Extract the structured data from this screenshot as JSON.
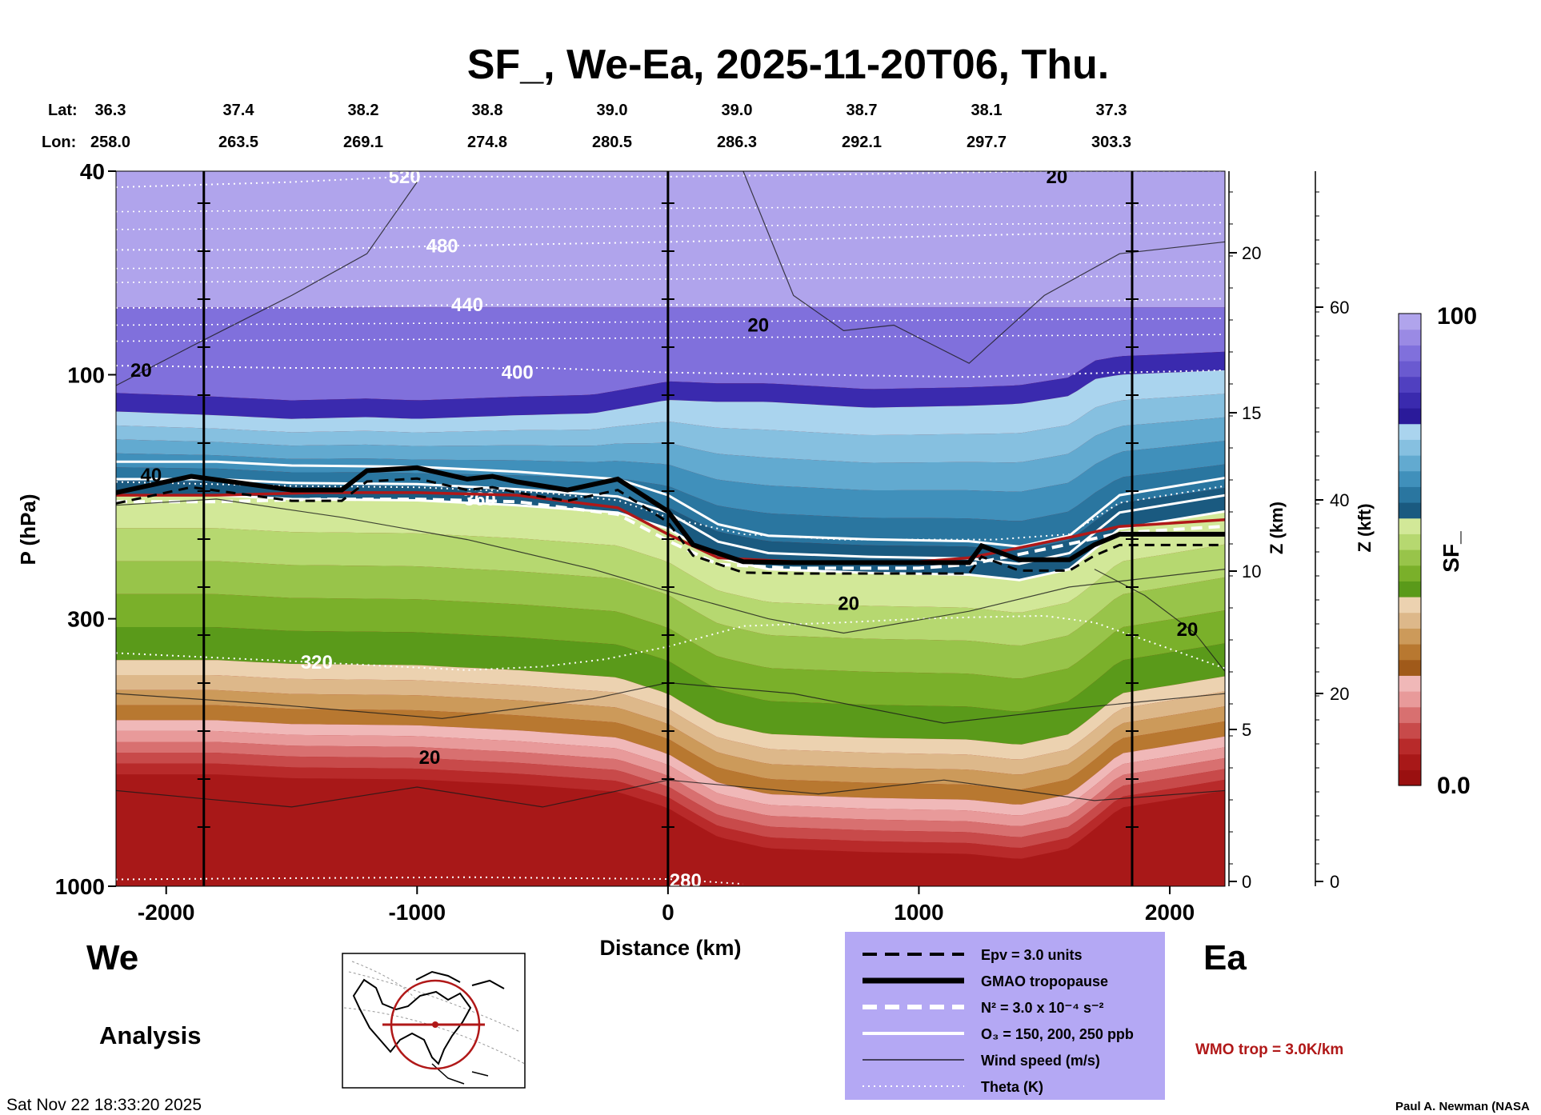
{
  "title": "SF_, We-Ea, 2025-11-20T06, Thu.",
  "lat_label": "Lat:",
  "lon_label": "Lon:",
  "lat_values": [
    "36.3",
    "37.4",
    "38.2",
    "38.8",
    "39.0",
    "39.0",
    "38.7",
    "38.1",
    "37.3"
  ],
  "lon_values": [
    "258.0",
    "263.5",
    "269.1",
    "274.8",
    "280.5",
    "286.3",
    "292.1",
    "297.7",
    "303.3"
  ],
  "axes": {
    "ylabel": "P (hPa)",
    "xlabel": "Distance (km)",
    "z_km_label": "Z (km)",
    "z_kft_label": "Z (kft)",
    "p_ticks": [
      "40",
      "100",
      "300",
      "1000"
    ],
    "x_ticks": [
      "-2000",
      "-1000",
      "0",
      "1000",
      "2000"
    ],
    "z_km_ticks": [
      "20",
      "15",
      "10",
      "5",
      "0"
    ],
    "z_kft_ticks": [
      "60",
      "40",
      "20",
      "0"
    ]
  },
  "colorbar": {
    "label": "SF_",
    "max_label": "100",
    "min_label": "0.0",
    "colors": [
      "#9a1010",
      "#a81818",
      "#b82a2a",
      "#c84a4a",
      "#d87070",
      "#e89a9a",
      "#f0b8b8",
      "#a05a1a",
      "#b87830",
      "#cc9a5a",
      "#ddb88a",
      "#ecd2b0",
      "#5a9a1a",
      "#7ab02a",
      "#98c44a",
      "#b6d870",
      "#d2e898",
      "#1a5a80",
      "#2a76a0",
      "#4090bb",
      "#62aad0",
      "#86c0e0",
      "#aad4ee",
      "#2a1a9a",
      "#3a2aae",
      "#5040c0",
      "#6a5ad0",
      "#8070dc",
      "#9a8ae4",
      "#b0a4ec"
    ]
  },
  "side_labels": {
    "left": "We",
    "right": "Ea",
    "analysis": "Analysis"
  },
  "legend": {
    "items": [
      {
        "style": "dashed-black",
        "label": "Epv = 3.0 units"
      },
      {
        "style": "thick-black",
        "label": "GMAO tropopause"
      },
      {
        "style": "dashed-white",
        "label": "N² = 3.0 x 10⁻⁴ s⁻²"
      },
      {
        "style": "white",
        "label": "O₃ = 150, 200, 250 ppb"
      },
      {
        "style": "thin-black",
        "label": "Wind speed (m/s)"
      },
      {
        "style": "dotted-white",
        "label": "Theta (K)"
      }
    ],
    "background": "#b4a8f4"
  },
  "wmo_label": "WMO trop = 3.0K/km",
  "wmo_color": "#b01818",
  "timestamp": "Sat Nov 22 18:33:20 2025",
  "credit": "Paul A. Newman (NASA",
  "chart_data": {
    "type": "heatmap",
    "title": "SF_, We-Ea, 2025-11-20T06, Thu.",
    "xlabel": "Distance (km)",
    "ylabel": "P (hPa)",
    "xlim": [
      -2200,
      2220
    ],
    "ylim": [
      1000,
      40
    ],
    "y_scale": "log",
    "color_range": [
      0.0,
      100
    ],
    "grid": false,
    "vertical_lines_km": [
      -1850,
      0,
      1850
    ],
    "stratosphere_lower_boundary_hPa": {
      "x": [
        -2200,
        -1800,
        -1500,
        -1200,
        -1000,
        -800,
        -600,
        -300,
        0,
        200,
        400,
        800,
        1200,
        1400,
        1600,
        1700,
        1800,
        2220
      ],
      "p": [
        118,
        120,
        122,
        121,
        122,
        121,
        120,
        119,
        112,
        113,
        113,
        116,
        115,
        114,
        110,
        102,
        100,
        98
      ]
    },
    "ozone_layer_lower_boundary_hPa": {
      "x": [
        -2200,
        -1800,
        -1500,
        -1000,
        -600,
        -200,
        0,
        200,
        400,
        800,
        1200,
        1400,
        1600,
        1800,
        2220
      ],
      "p": [
        172,
        172,
        175,
        176,
        180,
        186,
        200,
        228,
        240,
        244,
        246,
        252,
        240,
        200,
        185
      ]
    },
    "gmao_tropopause_hPa": {
      "x": [
        -2200,
        -1900,
        -1500,
        -1300,
        -1200,
        -1000,
        -800,
        -700,
        -600,
        -400,
        -200,
        0,
        100,
        300,
        500,
        800,
        1000,
        1200,
        1250,
        1400,
        1600,
        1700,
        1800,
        2220
      ],
      "p": [
        170,
        158,
        168,
        168,
        154,
        152,
        160,
        158,
        162,
        168,
        160,
        185,
        215,
        232,
        233,
        233,
        233,
        233,
        216,
        230,
        230,
        215,
        205,
        205
      ]
    },
    "wmo_tropopause_hPa": {
      "x": [
        -2200,
        -1800,
        -1400,
        -1000,
        -600,
        -200,
        0,
        200,
        500,
        800,
        1000,
        1200,
        1400,
        1600,
        1800,
        2220
      ],
      "p": [
        172,
        172,
        170,
        170,
        172,
        182,
        205,
        228,
        232,
        232,
        232,
        228,
        218,
        208,
        198,
        192
      ]
    },
    "theta_isentropes_K": [
      {
        "level": 320,
        "label_x": -1400,
        "label_p": 365,
        "pts": [
          [
            -2200,
            350
          ],
          [
            -1400,
            365
          ],
          [
            -800,
            378
          ],
          [
            -500,
            372
          ],
          [
            -250,
            360
          ],
          [
            0,
            340
          ],
          [
            300,
            310
          ],
          [
            700,
            305
          ],
          [
            1000,
            300
          ],
          [
            1200,
            298
          ],
          [
            1500,
            296
          ],
          [
            1700,
            305
          ],
          [
            1900,
            330
          ],
          [
            2220,
            375
          ]
        ]
      },
      {
        "level": 360,
        "label_x": -750,
        "label_p": 175,
        "pts": [
          [
            -2200,
            162
          ],
          [
            -1500,
            165
          ],
          [
            -1000,
            166
          ],
          [
            -500,
            170
          ],
          [
            -200,
            176
          ],
          [
            0,
            190
          ],
          [
            300,
            205
          ],
          [
            700,
            210
          ],
          [
            1000,
            210
          ],
          [
            1300,
            210
          ],
          [
            1600,
            205
          ],
          [
            1800,
            178
          ],
          [
            2220,
            165
          ]
        ]
      },
      {
        "level": 400,
        "label_x": -600,
        "label_p": 99,
        "pts": [
          [
            -2200,
            96
          ],
          [
            -1500,
            97
          ],
          [
            -1000,
            97
          ],
          [
            -500,
            97
          ],
          [
            0,
            99
          ],
          [
            600,
            100
          ],
          [
            1200,
            101
          ],
          [
            1800,
            99
          ],
          [
            2220,
            98
          ]
        ]
      },
      {
        "level": 440,
        "label_x": -800,
        "label_p": 73,
        "pts": [
          [
            -2200,
            74
          ],
          [
            -1500,
            74
          ],
          [
            -800,
            73
          ],
          [
            0,
            73
          ],
          [
            800,
            73
          ],
          [
            1500,
            72
          ],
          [
            2220,
            71
          ]
        ]
      },
      {
        "level": 480,
        "label_x": -900,
        "label_p": 56,
        "pts": [
          [
            -2200,
            57
          ],
          [
            -1500,
            57
          ],
          [
            -900,
            56
          ],
          [
            0,
            55
          ],
          [
            800,
            54
          ],
          [
            1500,
            53
          ],
          [
            2220,
            53
          ]
        ]
      },
      {
        "level": 520,
        "label_x": -1050,
        "label_p": 41,
        "pts": [
          [
            -2200,
            43
          ],
          [
            -1500,
            42
          ],
          [
            -1050,
            41
          ],
          [
            0,
            41
          ],
          [
            800,
            40.5
          ],
          [
            1500,
            40
          ],
          [
            2220,
            40
          ]
        ]
      },
      {
        "level": 280,
        "label_x": 70,
        "label_p": 975,
        "pts": [
          [
            -2200,
            970
          ],
          [
            -1600,
            965
          ],
          [
            -800,
            960
          ],
          [
            0,
            968
          ],
          [
            300,
            990
          ]
        ]
      }
    ],
    "wind_speed_labels_ms": [
      {
        "x": -2100,
        "p": 98,
        "value": 20
      },
      {
        "x": -2060,
        "p": 157,
        "value": 40
      },
      {
        "x": -950,
        "p": 560,
        "value": 20
      },
      {
        "x": 360,
        "p": 80,
        "value": 20
      },
      {
        "x": 720,
        "p": 280,
        "value": 20
      },
      {
        "x": 2070,
        "p": 315,
        "value": 20
      },
      {
        "x": 1550,
        "p": 41,
        "value": 20
      }
    ]
  }
}
